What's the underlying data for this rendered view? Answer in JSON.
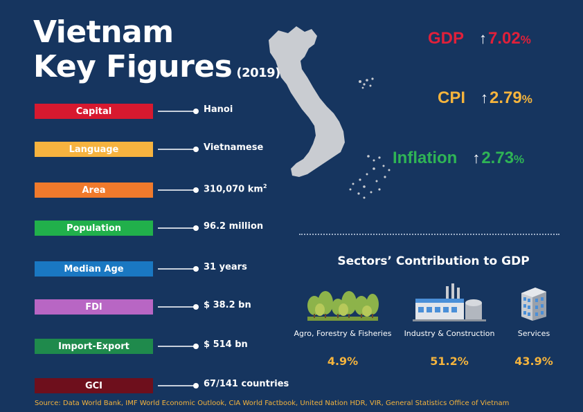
{
  "header": {
    "title_line1": "Vietnam",
    "title_line2": "Key Figures",
    "year": "(2019)"
  },
  "figures": [
    {
      "label": "Capital",
      "value": "Hanoi",
      "color": "#d7192f"
    },
    {
      "label": "Language",
      "value": "Vietnamese",
      "color": "#f7b33f"
    },
    {
      "label": "Area",
      "value": "310,070 km",
      "sup": "2",
      "color": "#f07a2c"
    },
    {
      "label": "Population",
      "value": "96.2 million",
      "color": "#21b04b"
    },
    {
      "label": "Median Age",
      "value": "31 years",
      "color": "#1a78c2"
    },
    {
      "label": "FDI",
      "value": "$ 38.2 bn",
      "color": "#b866c4"
    },
    {
      "label": "Import-Export",
      "value": "$ 514 bn",
      "color": "#1f8a4c"
    },
    {
      "label": "GCI",
      "value": "67/141 countries",
      "color": "#6e0f1c"
    }
  ],
  "indicators": [
    {
      "name": "GDP",
      "arrow": "↑",
      "value": "7.02",
      "unit": "%",
      "color": "#e0203a"
    },
    {
      "name": "CPI",
      "arrow": "↑",
      "value": "2.79",
      "unit": "%",
      "color": "#f5b43d"
    },
    {
      "name": "Inflation",
      "arrow": "↑",
      "value": "2.73",
      "unit": "%",
      "color": "#2fb455"
    }
  ],
  "sectors": {
    "title": "Sectors’ Contribution to GDP",
    "items": [
      {
        "name": "Agro, Forestry & Fisheries",
        "percent": "4.9%"
      },
      {
        "name": "Industry & Construction",
        "percent": "51.2%"
      },
      {
        "name": "Services",
        "percent": "43.9%"
      }
    ]
  },
  "source": "Source: Data World Bank, IMF World Economic Outlook, CIA World Factbook, United Nation HDR, VIR, General Statistics Office of Vietnam",
  "icons": [
    "vietnam-map-icon",
    "forest-icon",
    "factory-icon",
    "office-building-icon"
  ]
}
